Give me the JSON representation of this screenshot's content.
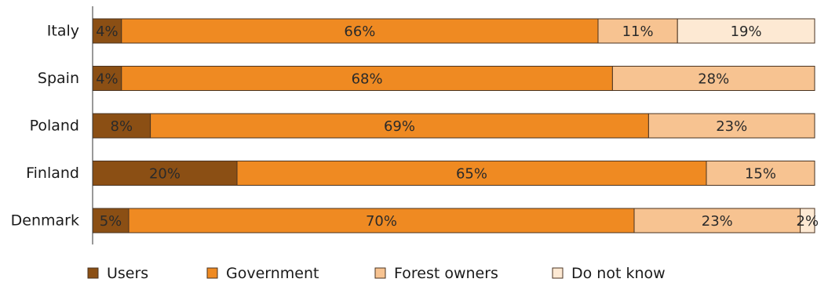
{
  "chart_data": {
    "type": "bar",
    "orientation": "horizontal",
    "stacked": true,
    "categories": [
      "Italy",
      "Spain",
      "Poland",
      "Finland",
      "Denmark"
    ],
    "series": [
      {
        "name": "Users",
        "color": "#8b4f14",
        "values": [
          4,
          4,
          8,
          20,
          5
        ]
      },
      {
        "name": "Government",
        "color": "#ef8a22",
        "values": [
          66,
          68,
          69,
          65,
          70
        ]
      },
      {
        "name": "Forest owners",
        "color": "#f7c391",
        "values": [
          11,
          28,
          23,
          15,
          23
        ]
      },
      {
        "name": "Do not know",
        "color": "#fde9d3",
        "values": [
          19,
          0,
          0,
          0,
          2
        ]
      }
    ],
    "labels": [
      [
        "4%",
        "66%",
        "11%",
        "19%"
      ],
      [
        "4%",
        "68%",
        "28%",
        ""
      ],
      [
        "8%",
        "69%",
        "23%",
        ""
      ],
      [
        "20%",
        "65%",
        "15%",
        ""
      ],
      [
        "5%",
        "70%",
        "23%",
        "2%"
      ]
    ],
    "xlim": [
      0,
      100
    ],
    "grid": false,
    "legend_position": "bottom"
  }
}
